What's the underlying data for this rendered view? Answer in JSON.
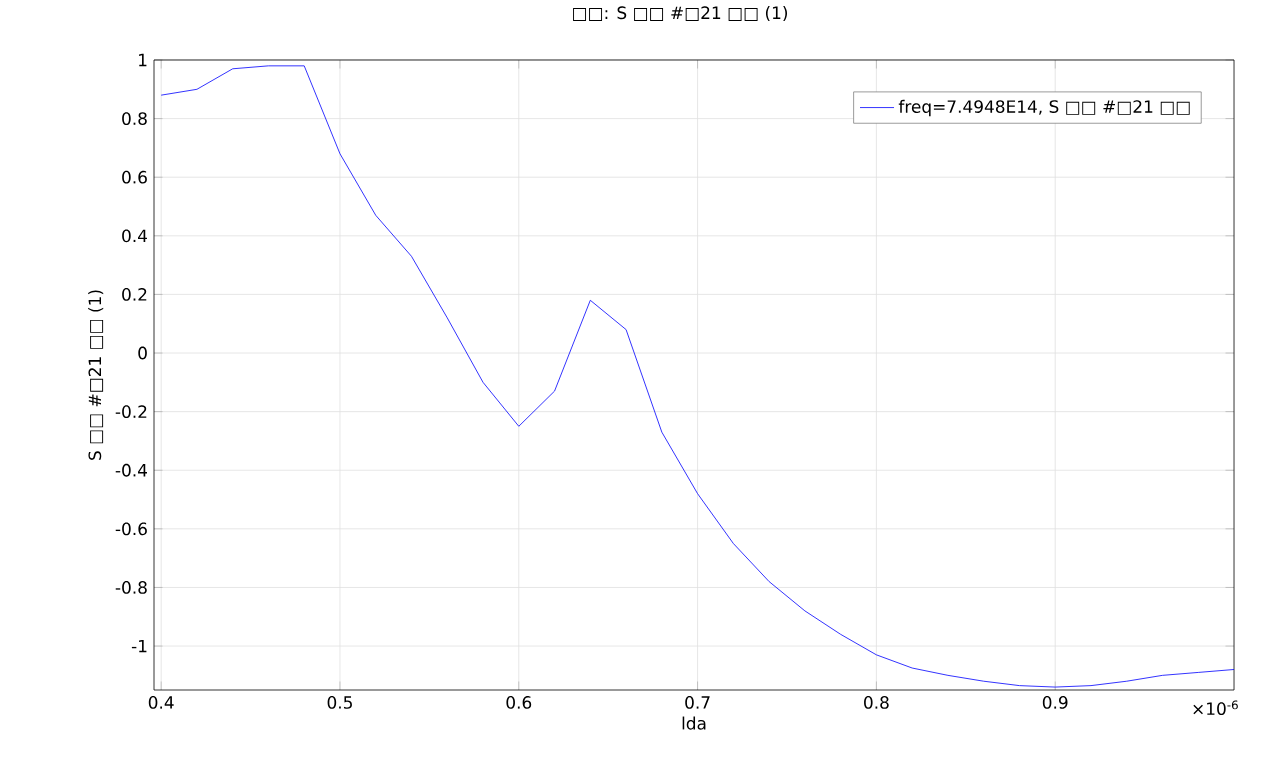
{
  "chart_data": {
    "type": "line",
    "title": "□□: S □□ #□21 □□ (1)",
    "xlabel": "lda",
    "ylabel": "S □□ #□21 □□ (1)",
    "x": [
      0.4,
      0.42,
      0.44,
      0.46,
      0.48,
      0.5,
      0.52,
      0.54,
      0.56,
      0.58,
      0.6,
      0.62,
      0.64,
      0.66,
      0.68,
      0.7,
      0.72,
      0.74,
      0.76,
      0.78,
      0.8,
      0.82,
      0.84,
      0.86,
      0.88,
      0.9,
      0.92,
      0.94,
      0.96,
      0.98,
      1.0
    ],
    "series": [
      {
        "name": "freq=7.4948E14, S □□ #□21 □□",
        "color": "#0000ff",
        "values": [
          0.88,
          0.9,
          0.97,
          0.98,
          0.98,
          0.68,
          0.47,
          0.33,
          0.12,
          -0.1,
          -0.25,
          -0.13,
          0.18,
          0.08,
          -0.27,
          -0.48,
          -0.65,
          -0.78,
          -0.88,
          -0.96,
          -1.03,
          -1.075,
          -1.1,
          -1.12,
          -1.135,
          -1.14,
          -1.135,
          -1.12,
          -1.1,
          -1.09,
          -1.08
        ]
      }
    ],
    "xlim": [
      0.396,
      1.0
    ],
    "ylim": [
      -1.15,
      1.0
    ],
    "xticks": [
      0.4,
      0.5,
      0.6,
      0.7,
      0.8,
      0.9
    ],
    "yticks": [
      -1,
      -0.8,
      -0.6,
      -0.4,
      -0.2,
      0,
      0.2,
      0.4,
      0.6,
      0.8,
      1
    ],
    "annotations": [
      "×10$^{-6}$"
    ],
    "grid": true,
    "legend": "top right",
    "marker": "none",
    "line_style": "solid"
  }
}
